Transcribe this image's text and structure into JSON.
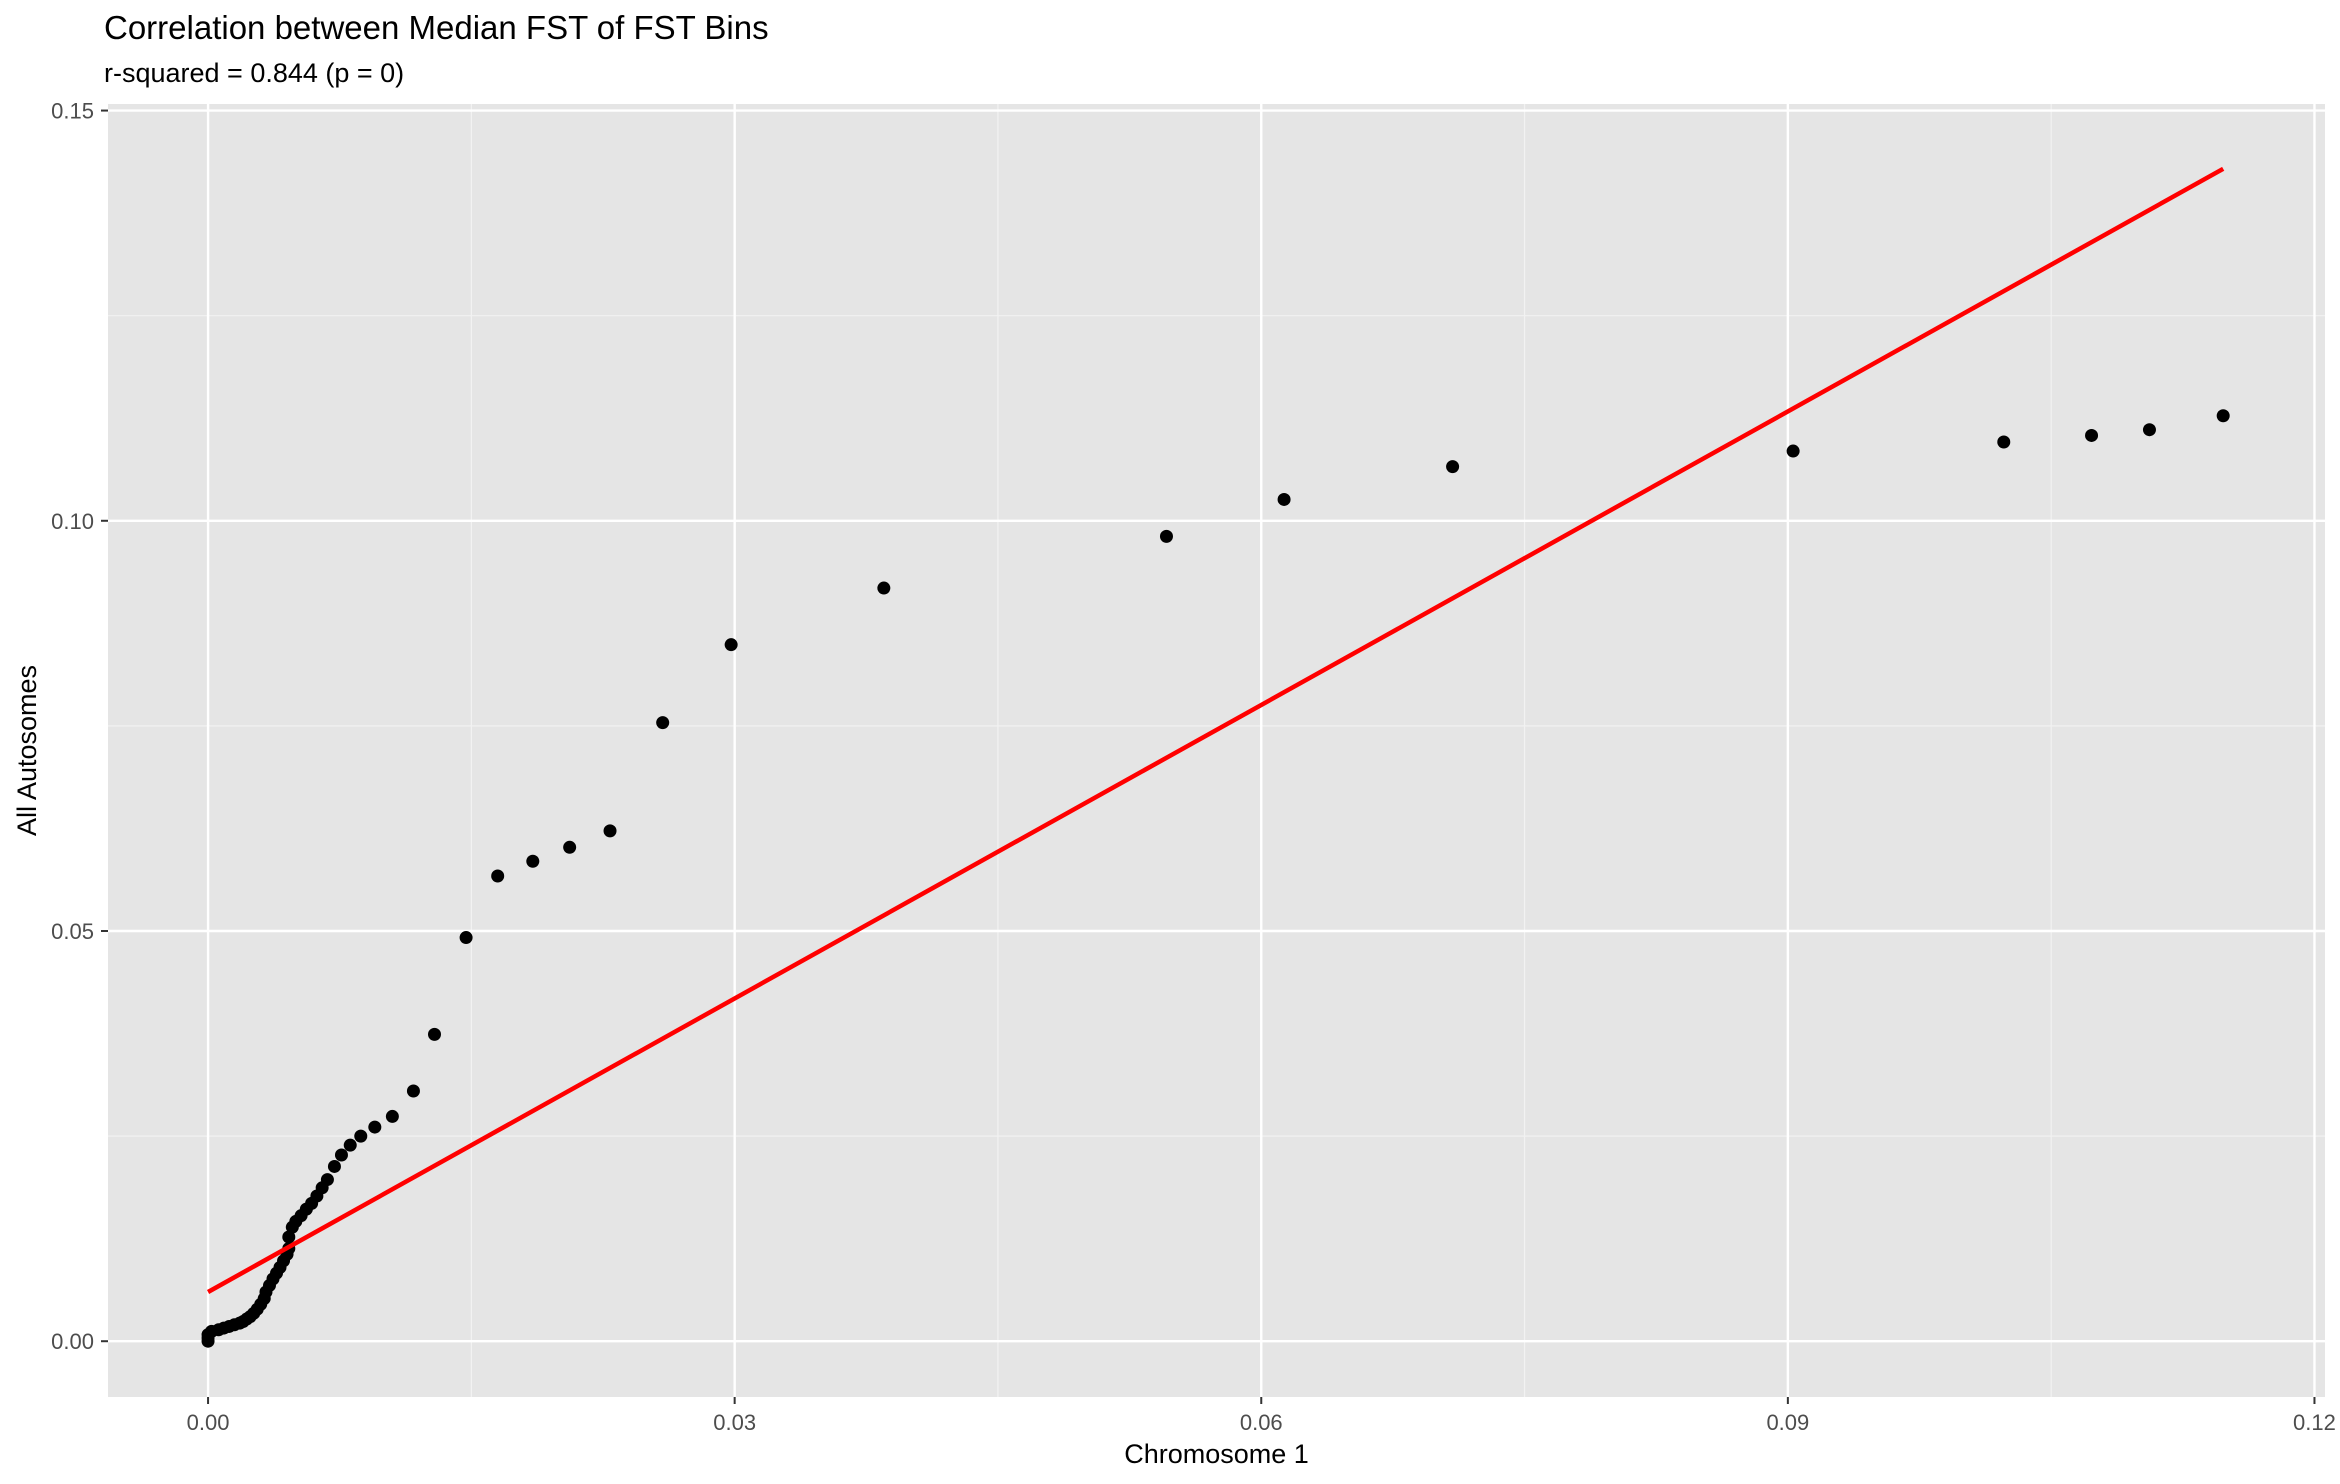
{
  "chart_data": {
    "type": "scatter",
    "title": "Correlation between Median FST of FST Bins",
    "subtitle": "r-squared = 0.844 (p = 0)",
    "xlabel": "Chromosome 1",
    "ylabel": "All Autosomes",
    "xlim": [
      -0.0057,
      0.1206
    ],
    "ylim": [
      -0.0068,
      0.1508
    ],
    "x_ticks": [
      0.0,
      0.03,
      0.06,
      0.09,
      0.12
    ],
    "x_tick_labels": [
      "0.00",
      "0.03",
      "0.06",
      "0.09",
      "0.12"
    ],
    "y_ticks": [
      0.0,
      0.05,
      0.1,
      0.15
    ],
    "y_tick_labels": [
      "0.00",
      "0.05",
      "0.10",
      "0.15"
    ],
    "grid": true,
    "background_color": "#e5e5e5",
    "point_color": "#000000",
    "fit_color": "#ff0000",
    "points": [
      [
        0.0,
        0.0
      ],
      [
        0.0,
        0.0004
      ],
      [
        0.0,
        0.0008
      ],
      [
        0.0002,
        0.0012
      ],
      [
        0.0006,
        0.0014
      ],
      [
        0.0009,
        0.0016
      ],
      [
        0.0012,
        0.0018
      ],
      [
        0.0015,
        0.002
      ],
      [
        0.0018,
        0.0022
      ],
      [
        0.002,
        0.0024
      ],
      [
        0.0022,
        0.0027
      ],
      [
        0.0024,
        0.003
      ],
      [
        0.0026,
        0.0034
      ],
      [
        0.0028,
        0.0039
      ],
      [
        0.003,
        0.0045
      ],
      [
        0.0032,
        0.0052
      ],
      [
        0.0033,
        0.006
      ],
      [
        0.0035,
        0.0068
      ],
      [
        0.0037,
        0.0076
      ],
      [
        0.0039,
        0.0083
      ],
      [
        0.0041,
        0.009
      ],
      [
        0.0043,
        0.0098
      ],
      [
        0.0045,
        0.0106
      ],
      [
        0.0046,
        0.0113
      ],
      [
        0.0046,
        0.0127
      ],
      [
        0.0048,
        0.0139
      ],
      [
        0.005,
        0.0146
      ],
      [
        0.0053,
        0.0153
      ],
      [
        0.0056,
        0.0161
      ],
      [
        0.0059,
        0.0168
      ],
      [
        0.0062,
        0.0177
      ],
      [
        0.0065,
        0.0187
      ],
      [
        0.0068,
        0.0197
      ],
      [
        0.0072,
        0.0213
      ],
      [
        0.0076,
        0.0227
      ],
      [
        0.0081,
        0.0239
      ],
      [
        0.0087,
        0.025
      ],
      [
        0.0095,
        0.0261
      ],
      [
        0.0105,
        0.0274
      ],
      [
        0.0117,
        0.0305
      ],
      [
        0.0129,
        0.0374
      ],
      [
        0.0147,
        0.0492
      ],
      [
        0.0165,
        0.0567
      ],
      [
        0.0185,
        0.0585
      ],
      [
        0.0206,
        0.0602
      ],
      [
        0.0229,
        0.0622
      ],
      [
        0.0259,
        0.0754
      ],
      [
        0.0298,
        0.0849
      ],
      [
        0.0385,
        0.0918
      ],
      [
        0.0546,
        0.0981
      ],
      [
        0.0613,
        0.1026
      ],
      [
        0.0709,
        0.1066
      ],
      [
        0.0903,
        0.1085
      ],
      [
        0.1023,
        0.1096
      ],
      [
        0.1073,
        0.1104
      ],
      [
        0.1106,
        0.1111
      ],
      [
        0.1148,
        0.1128
      ]
    ],
    "fit_line": {
      "x": [
        0.0,
        0.1148
      ],
      "y": [
        0.006,
        0.1429
      ]
    }
  }
}
